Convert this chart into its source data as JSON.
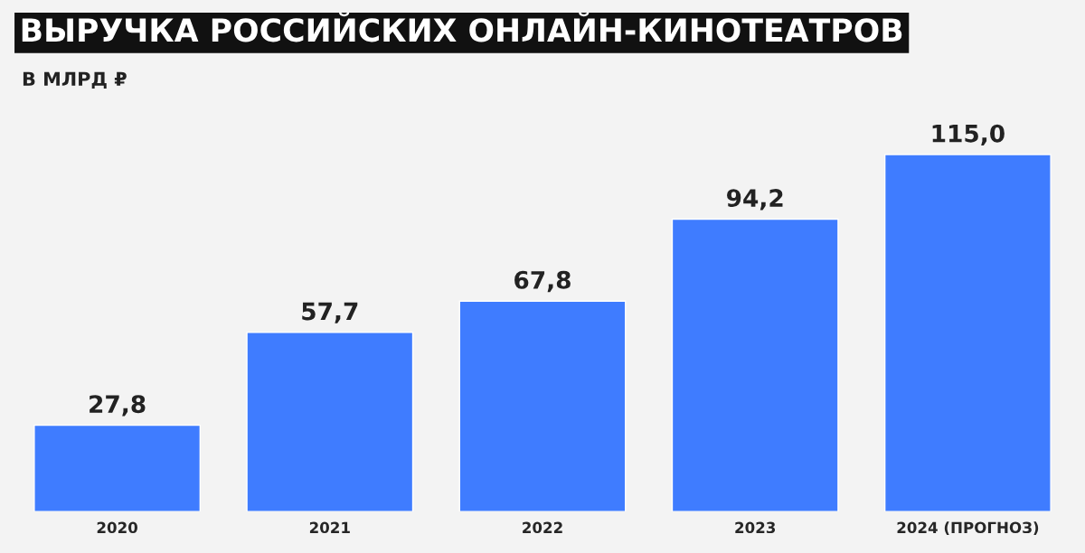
{
  "chart_data": {
    "type": "bar",
    "title": "ВЫРУЧКА РОССИЙСКИХ ОНЛАЙН-КИНОТЕАТРОВ",
    "subtitle": "В МЛРД ₽",
    "categories": [
      "2020",
      "2021",
      "2022",
      "2023",
      "2024 (ПРОГНОЗ)"
    ],
    "values": [
      27.8,
      57.7,
      67.8,
      94.2,
      115.0
    ],
    "value_labels": [
      "27,8",
      "57,7",
      "67,8",
      "94,2",
      "115,0"
    ],
    "color": "#3f7cff",
    "grid": false,
    "legend": false
  }
}
